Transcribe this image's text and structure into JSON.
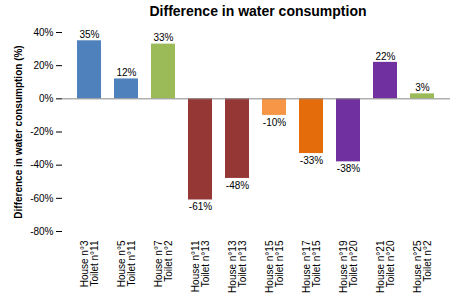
{
  "chart_data": {
    "type": "bar",
    "title": "Difference in water consumption",
    "y_label": "Difference in water consumption (%)",
    "categories": [
      "House n°3\nToilet n°11",
      "House n°5\nToilet n°11",
      "House n°7\nToilet n°2",
      "House n°11\nToilet n°13",
      "House n°13\nToilet n°13",
      "House n°15\nToilet n°15",
      "House n°17\nToilet n°15",
      "House n°19\nToilet n°20",
      "House n°21\nToilet n°20",
      "House n°25\nToilet n°2"
    ],
    "values": [
      35,
      12,
      33,
      -61,
      -48,
      -10,
      -33,
      -38,
      22,
      3
    ],
    "value_labels": [
      "35%",
      "12%",
      "33%",
      "-61%",
      "-48%",
      "-10%",
      "-33%",
      "-38%",
      "22%",
      "3%"
    ],
    "colors": [
      "#4f81bd",
      "#4f81bd",
      "#9bbb59",
      "#953735",
      "#953735",
      "#f79646",
      "#e46c0a",
      "#7030a0",
      "#7030a0",
      "#9bbb59"
    ],
    "ylim": [
      -80,
      40
    ],
    "yticks": [
      {
        "value": -80,
        "label": "-80%"
      },
      {
        "value": -60,
        "label": "-60%"
      },
      {
        "value": -40,
        "label": "-40%"
      },
      {
        "value": -20,
        "label": "-20%"
      },
      {
        "value": 0,
        "label": "0%"
      },
      {
        "value": 20,
        "label": "20%"
      },
      {
        "value": 40,
        "label": "40%"
      }
    ],
    "grid": false,
    "data_labels": true
  }
}
